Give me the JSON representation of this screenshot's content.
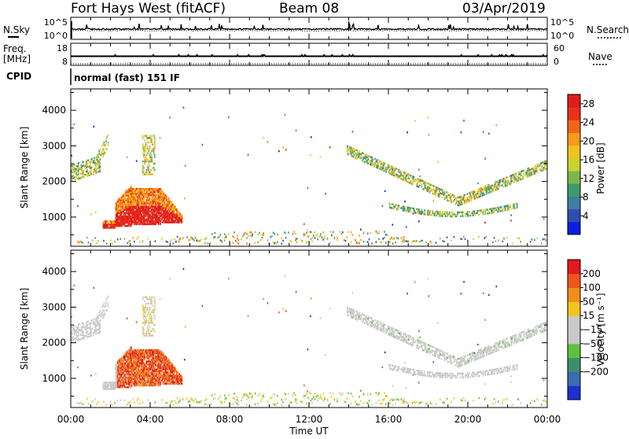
{
  "header": {
    "title": "Fort Hays West (fitACF)",
    "beam": "Beam 08",
    "date": "03/Apr/2019"
  },
  "noise_panel": {
    "left_label": "N.Sky",
    "right_label": "N.Search",
    "left_ticks": [
      "10^5",
      "10^0"
    ],
    "right_ticks": [
      "10^5",
      "10^0"
    ]
  },
  "freq_panel": {
    "left_label_top": "Freq.",
    "left_label_bottom": "[MHz]",
    "right_label": "Nave",
    "left_ticks": [
      "18",
      "8"
    ],
    "right_ticks": [
      "60",
      "0"
    ]
  },
  "cpid": {
    "label": "CPID",
    "value": "normal (fast) 151 IF"
  },
  "chart_data": [
    {
      "type": "heatmap",
      "parameter": "Power",
      "ylabel": "Slant Range [km]",
      "y_ticks": [
        "1000",
        "2000",
        "3000",
        "4000"
      ],
      "ylim": [
        180,
        4600
      ],
      "colorbar": {
        "label": "Power [dB]",
        "ticks": [
          "4",
          "8",
          "12",
          "16",
          "20",
          "24",
          "28"
        ],
        "range": [
          0,
          30
        ],
        "colors": [
          "#0a1fe0",
          "#2f4fb0",
          "#3c7fa0",
          "#3f9a6e",
          "#7ab84a",
          "#c9d22e",
          "#f2c21d",
          "#f79a1a",
          "#f1651a",
          "#e8321c",
          "#e01b1b"
        ]
      }
    },
    {
      "type": "heatmap",
      "parameter": "Velocity",
      "ylabel": "Slant Range [km]",
      "y_ticks": [
        "1000",
        "2000",
        "3000",
        "4000"
      ],
      "ylim": [
        180,
        4600
      ],
      "colorbar": {
        "label": "Velocity [m s⁻¹]",
        "ticks": [
          "200",
          "100",
          "50",
          "15",
          "−15",
          "−50",
          "−100",
          "−200"
        ],
        "colors": [
          "#1e2fd4",
          "#3a6cb2",
          "#3d8f6a",
          "#5fc23e",
          "#c9c9c9",
          "#c9c9c9",
          "#f2c51d",
          "#f28d1a",
          "#f0551b",
          "#e01b1b"
        ]
      }
    }
  ],
  "time_axis": {
    "label": "Time UT",
    "ticks": [
      "00:00",
      "04:00",
      "08:00",
      "12:00",
      "16:00",
      "20:00",
      "00:00"
    ],
    "range_hours": [
      0,
      24
    ]
  }
}
